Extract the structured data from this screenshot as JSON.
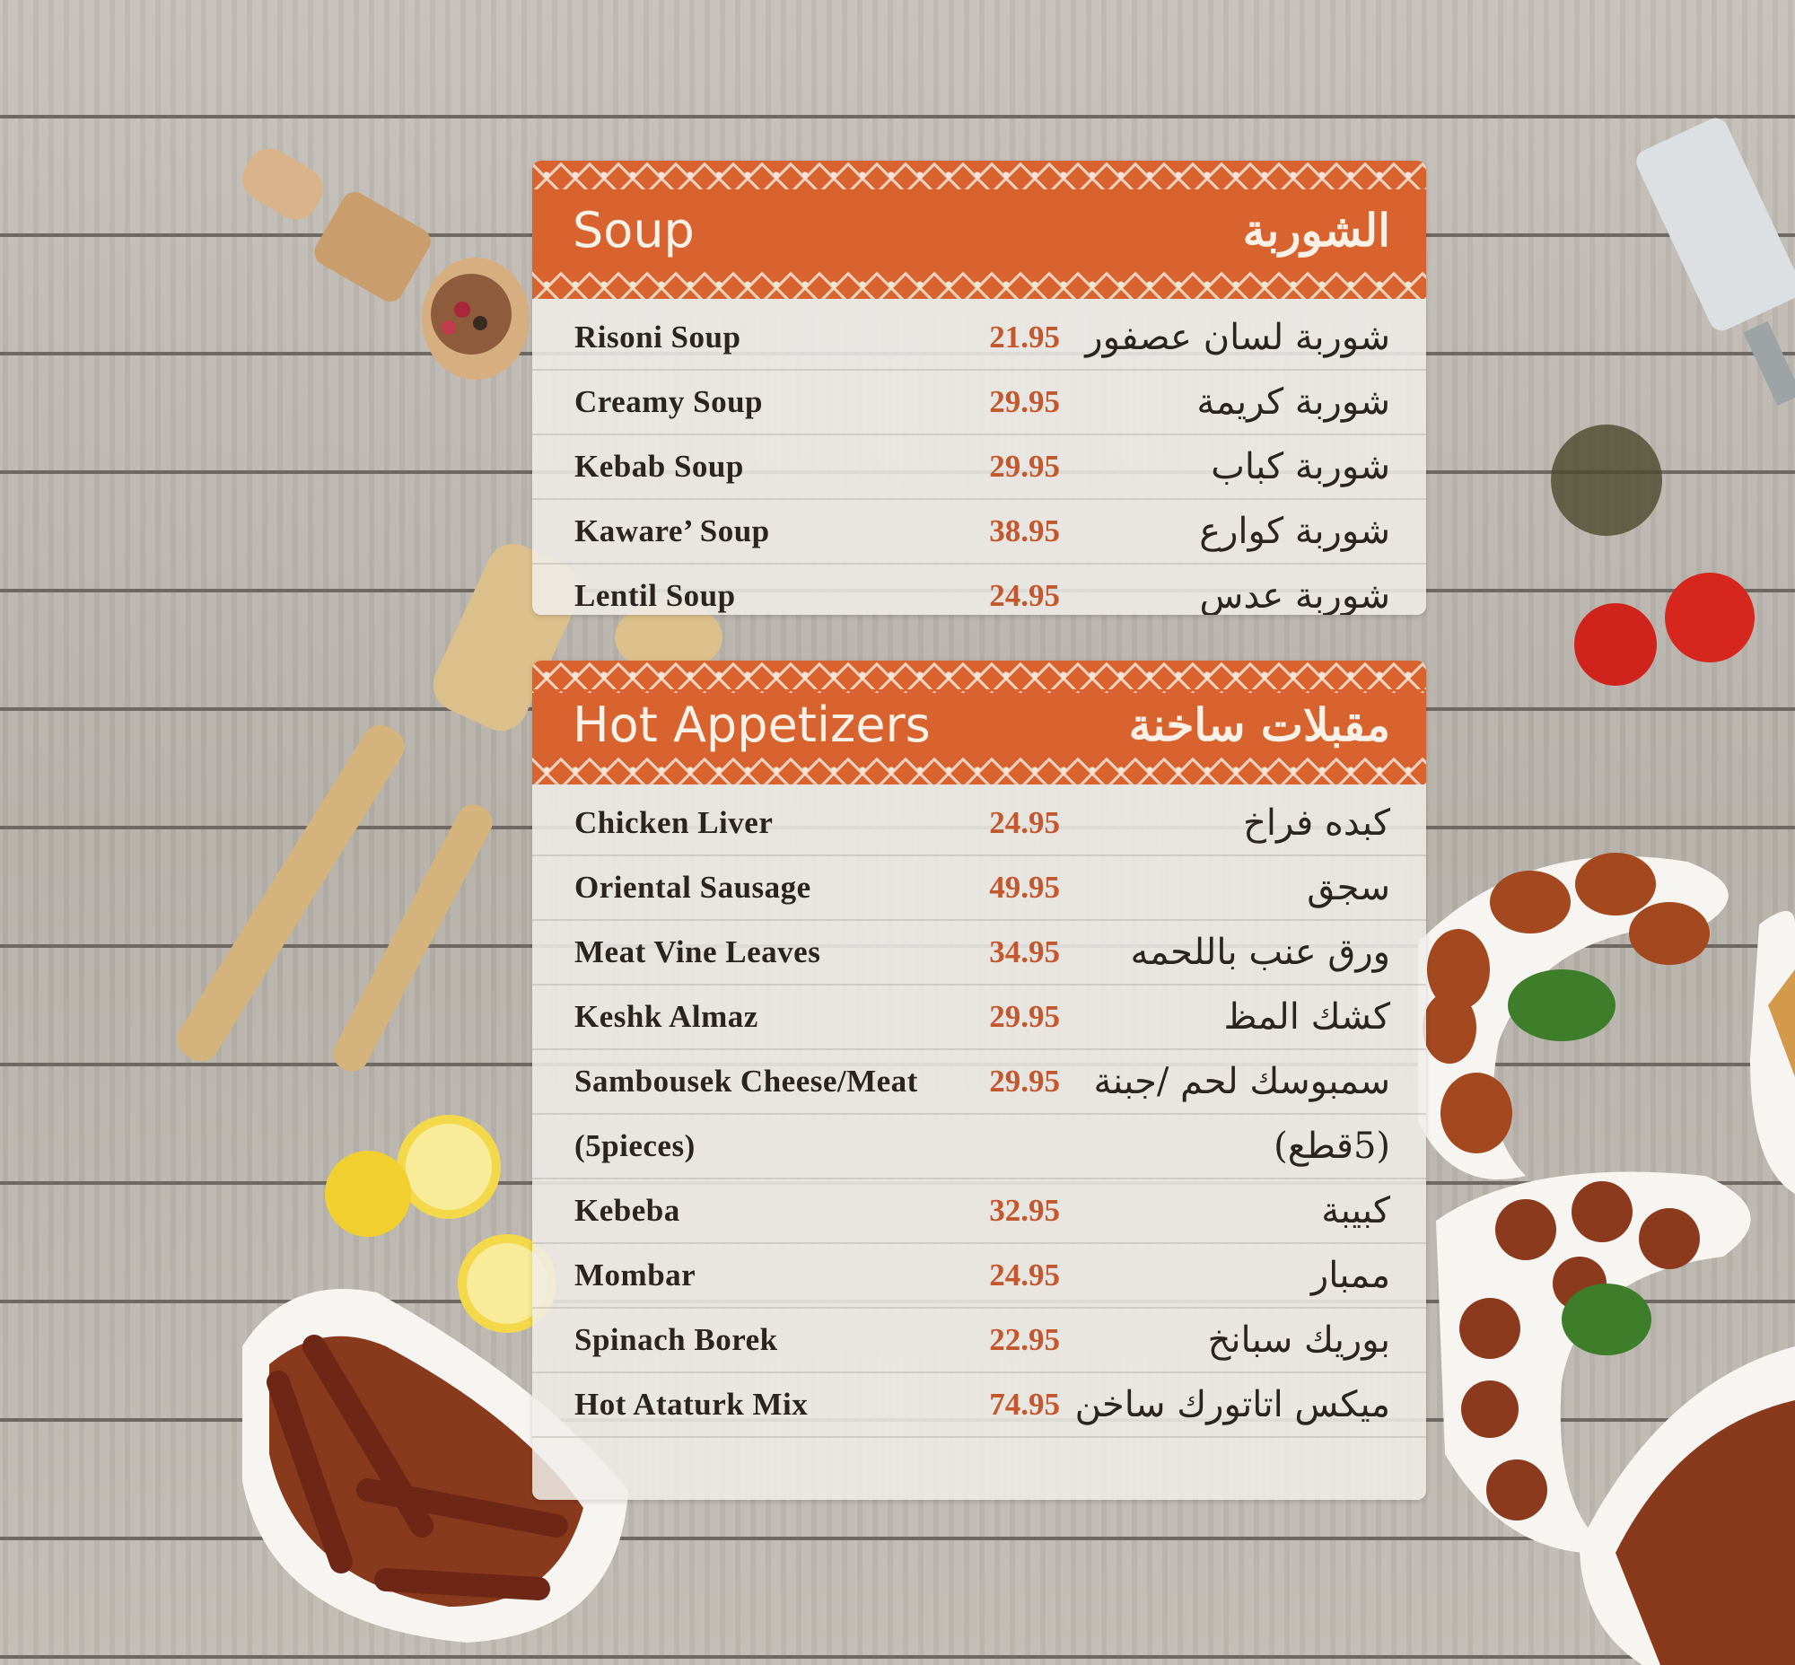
{
  "colors": {
    "accent": "#d8632e",
    "price": "#c4572b",
    "text": "#2a2421"
  },
  "sections": [
    {
      "title_en": "Soup",
      "title_ar": "الشوربة",
      "items": [
        {
          "en": "Risoni Soup",
          "price": "21.95",
          "ar": "شوربة لسان عصفور"
        },
        {
          "en": "Creamy Soup",
          "price": "29.95",
          "ar": "شوربة كريمة"
        },
        {
          "en": "Kebab Soup",
          "price": "29.95",
          "ar": "شوربة كباب"
        },
        {
          "en": "Kaware’ Soup",
          "price": "38.95",
          "ar": "شوربة كوارع"
        },
        {
          "en": "Lentil Soup",
          "price": "24.95",
          "ar": "شوربة عدس"
        }
      ]
    },
    {
      "title_en": "Hot Appetizers",
      "title_ar": "مقبلات ساخنة",
      "items": [
        {
          "en": "Chicken Liver",
          "price": "24.95",
          "ar": "كبده فراخ"
        },
        {
          "en": "Oriental Sausage",
          "price": "49.95",
          "ar": "سجق"
        },
        {
          "en": "Meat Vine Leaves",
          "price": "34.95",
          "ar": "ورق عنب باللحمه"
        },
        {
          "en": "Keshk Almaz",
          "price": "29.95",
          "ar": "كشك المظ"
        },
        {
          "en": "Sambousek Cheese/Meat",
          "price": "29.95",
          "ar": "سمبوسك لحم /جبنة"
        },
        {
          "en": "(5pieces)",
          "price": "",
          "ar": "(5قطع)"
        },
        {
          "en": "Kebeba",
          "price": "32.95",
          "ar": "كبيبة"
        },
        {
          "en": "Mombar",
          "price": "24.95",
          "ar": "ممبار"
        },
        {
          "en": "Spinach Borek",
          "price": "22.95",
          "ar": "بوريك سبانخ"
        },
        {
          "en": "Hot Ataturk Mix",
          "price": "74.95",
          "ar": "ميكس اتاتورك ساخن"
        }
      ]
    }
  ]
}
